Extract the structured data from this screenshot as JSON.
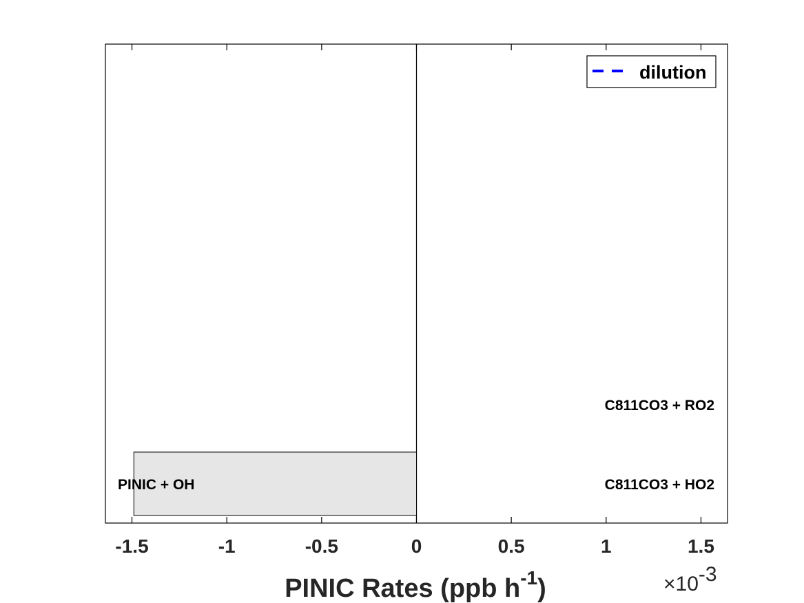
{
  "chart_data": {
    "type": "bar",
    "orientation": "horizontal",
    "xlabel_main": "PINIC Rates (ppb h",
    "xlabel_sup": "-1",
    "xlabel_close": ")",
    "x_multiplier_base": "×10",
    "x_multiplier_exp": "-3",
    "xlim": [
      -0.00164,
      0.00164
    ],
    "xticks": [
      -0.0015,
      -0.001,
      -0.0005,
      0,
      0.0005,
      0.001,
      0.0015
    ],
    "xtick_labels": [
      "-1.5",
      "-1",
      "-0.5",
      "0",
      "0.5",
      "1",
      "1.5"
    ],
    "bars": [
      {
        "value": -0.00149,
        "color": "#e6e6e6"
      }
    ],
    "negative_labels": [
      "PINIC + OH"
    ],
    "positive_labels": [
      "C811CO3 + HO2",
      "C811CO3 + RO2"
    ],
    "legend": {
      "position": "top-right",
      "entries": [
        {
          "name": "dilution",
          "color": "#0000ff",
          "style": "dashed"
        }
      ]
    },
    "grid": false
  }
}
